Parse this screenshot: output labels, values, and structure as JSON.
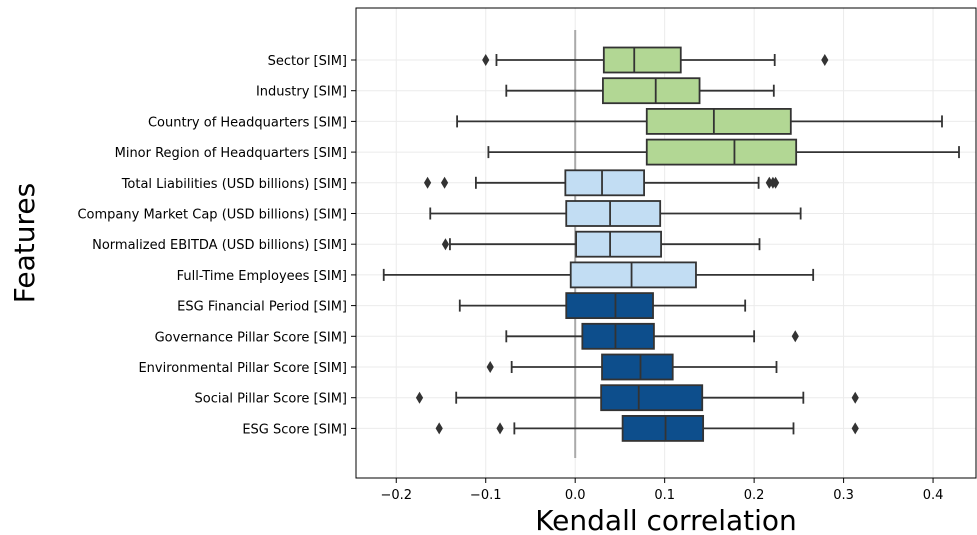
{
  "chart_data": {
    "type": "box",
    "xlabel": "Kendall correlation",
    "ylabel": "Features",
    "xlim": [
      -0.245,
      0.448
    ],
    "xticks": [
      -0.2,
      -0.1,
      0.0,
      0.1,
      0.2,
      0.3,
      0.4
    ],
    "xtick_labels": [
      "−0.2",
      "−0.1",
      "0.0",
      "0.1",
      "0.2",
      "0.3",
      "0.4"
    ],
    "reference_line_x": 0.0,
    "grid": true,
    "colors": {
      "green": "#b2d794",
      "light_blue": "#c2ddf3",
      "dark_blue": "#0d4e8c",
      "edge": "#333333",
      "reference": "#aaaaaa",
      "grid": "#ebebeb"
    },
    "boxes": [
      {
        "label": "Sector [SIM]",
        "color": "green",
        "whisker_low": -0.088,
        "q1": 0.032,
        "median": 0.066,
        "q3": 0.118,
        "whisker_high": 0.223,
        "outliers": [
          -0.1,
          0.279
        ]
      },
      {
        "label": "Industry [SIM]",
        "color": "green",
        "whisker_low": -0.077,
        "q1": 0.031,
        "median": 0.09,
        "q3": 0.139,
        "whisker_high": 0.222,
        "outliers": []
      },
      {
        "label": "Country of Headquarters [SIM]",
        "color": "green",
        "whisker_low": -0.132,
        "q1": 0.08,
        "median": 0.155,
        "q3": 0.241,
        "whisker_high": 0.41,
        "outliers": []
      },
      {
        "label": "Minor Region of Headquarters [SIM]",
        "color": "green",
        "whisker_low": -0.097,
        "q1": 0.08,
        "median": 0.178,
        "q3": 0.247,
        "whisker_high": 0.429,
        "outliers": []
      },
      {
        "label": "Total Liabilities (USD billions) [SIM]",
        "color": "light_blue",
        "whisker_low": -0.111,
        "q1": -0.011,
        "median": 0.03,
        "q3": 0.077,
        "whisker_high": 0.205,
        "outliers": [
          -0.165,
          -0.146,
          0.217,
          0.221,
          0.224
        ]
      },
      {
        "label": "Company Market Cap (USD billions) [SIM]",
        "color": "light_blue",
        "whisker_low": -0.162,
        "q1": -0.01,
        "median": 0.039,
        "q3": 0.095,
        "whisker_high": 0.252,
        "outliers": []
      },
      {
        "label": "Normalized EBITDA (USD billions) [SIM]",
        "color": "light_blue",
        "whisker_low": -0.14,
        "q1": 0.001,
        "median": 0.039,
        "q3": 0.096,
        "whisker_high": 0.206,
        "outliers": [
          -0.145
        ]
      },
      {
        "label": "Full-Time Employees [SIM]",
        "color": "light_blue",
        "whisker_low": -0.214,
        "q1": -0.005,
        "median": 0.063,
        "q3": 0.135,
        "whisker_high": 0.266,
        "outliers": []
      },
      {
        "label": "ESG Financial Period [SIM]",
        "color": "dark_blue",
        "whisker_low": -0.129,
        "q1": -0.01,
        "median": 0.045,
        "q3": 0.087,
        "whisker_high": 0.19,
        "outliers": []
      },
      {
        "label": "Governance Pillar Score [SIM]",
        "color": "dark_blue",
        "whisker_low": -0.077,
        "q1": 0.008,
        "median": 0.045,
        "q3": 0.088,
        "whisker_high": 0.2,
        "outliers": [
          0.246
        ]
      },
      {
        "label": "Environmental Pillar Score [SIM]",
        "color": "dark_blue",
        "whisker_low": -0.071,
        "q1": 0.03,
        "median": 0.073,
        "q3": 0.109,
        "whisker_high": 0.225,
        "outliers": [
          -0.095
        ]
      },
      {
        "label": "Social Pillar Score [SIM]",
        "color": "dark_blue",
        "whisker_low": -0.133,
        "q1": 0.029,
        "median": 0.071,
        "q3": 0.142,
        "whisker_high": 0.255,
        "outliers": [
          -0.174,
          0.313
        ]
      },
      {
        "label": "ESG Score [SIM]",
        "color": "dark_blue",
        "whisker_low": -0.068,
        "q1": 0.053,
        "median": 0.101,
        "q3": 0.143,
        "whisker_high": 0.244,
        "outliers": [
          -0.152,
          -0.084,
          0.313
        ]
      }
    ]
  }
}
